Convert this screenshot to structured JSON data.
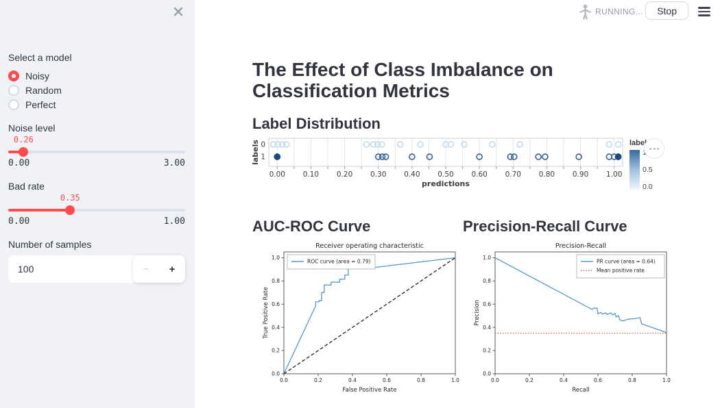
{
  "header": {
    "status_label": "RUNNING...",
    "stop_label": "Stop"
  },
  "icons": {
    "close": "close-x",
    "running_man": "running-man",
    "hamburger": "menu",
    "minus": "−",
    "plus": "+",
    "chart_menu": "ellipsis"
  },
  "sidebar": {
    "model_select": {
      "label": "Select a model",
      "options": [
        {
          "label": "Noisy",
          "selected": true
        },
        {
          "label": "Random",
          "selected": false
        },
        {
          "label": "Perfect",
          "selected": false
        }
      ]
    },
    "noise_slider": {
      "label": "Noise level",
      "value": "0.26",
      "min": "0.00",
      "max": "3.00",
      "percent": 8.67
    },
    "bad_rate_slider": {
      "label": "Bad rate",
      "value": "0.35",
      "min": "0.00",
      "max": "1.00",
      "percent": 35
    },
    "samples_input": {
      "label": "Number of samples",
      "value": "100"
    }
  },
  "main": {
    "title": "The Effect of Class Imbalance on Classification Metrics",
    "label_dist_heading": "Label Distribution",
    "roc_heading": "AUC-ROC Curve",
    "pr_heading": "Precision-Recall Curve"
  },
  "chart_data": [
    {
      "type": "scatter",
      "name": "label-distribution-strip",
      "xlabel": "predictions",
      "ylabel": "labels",
      "xlim": [
        -0.025,
        1.025
      ],
      "grid_step": 0.05,
      "x_ticks": [
        "0.00",
        "0.10",
        "0.20",
        "0.30",
        "0.40",
        "0.50",
        "0.60",
        "0.70",
        "0.80",
        "0.90",
        "1.00"
      ],
      "y_categories": [
        "0",
        "1"
      ],
      "rows": [
        {
          "label": "0",
          "color": "#c3dcef",
          "points": [
            -0.012,
            0.002,
            0.015,
            0.027,
            0.265,
            0.285,
            0.298,
            0.31,
            0.365,
            0.425,
            0.5,
            0.515,
            0.555,
            0.638,
            0.72,
            0.985,
            1.012
          ],
          "filled": []
        },
        {
          "label": "1",
          "color": "#39689f",
          "points": [
            0.0,
            0.3,
            0.312,
            0.322,
            0.4,
            0.452,
            0.6,
            0.692,
            0.703,
            0.775,
            0.795,
            0.895,
            0.985,
            1.0,
            1.012
          ],
          "filled": [
            0.0,
            1.012
          ]
        }
      ],
      "filled_color": "#1b4a86",
      "legend": {
        "title": "labels",
        "ticks": [
          "1.0",
          "0.5",
          "0.0"
        ],
        "gradient": [
          "#3a699f",
          "#9ec2e0",
          "#f0f6fc"
        ]
      }
    },
    {
      "type": "line",
      "name": "roc-curve",
      "title": "Receiver operating characteristic",
      "xlabel": "False Positive Rate",
      "ylabel": "True Positive Rate",
      "xlim": [
        0,
        1
      ],
      "ylim": [
        0,
        1.05
      ],
      "x_ticks": [
        "0.0",
        "0.2",
        "0.4",
        "0.6",
        "0.8",
        "1.0"
      ],
      "y_ticks": [
        "0.0",
        "0.2",
        "0.4",
        "0.6",
        "0.8",
        "1.0"
      ],
      "legend_pos": "upper-left",
      "series": [
        {
          "name": "ROC curve (area = 0.79)",
          "color": "#5497d5",
          "dash": "solid",
          "in_legend": true,
          "points": [
            [
              0,
              0
            ],
            [
              0.185,
              0.585
            ],
            [
              0.185,
              0.62
            ],
            [
              0.205,
              0.62
            ],
            [
              0.205,
              0.63
            ],
            [
              0.22,
              0.63
            ],
            [
              0.22,
              0.7
            ],
            [
              0.235,
              0.7
            ],
            [
              0.235,
              0.765
            ],
            [
              0.275,
              0.765
            ],
            [
              0.275,
              0.79
            ],
            [
              0.325,
              0.79
            ],
            [
              0.325,
              0.815
            ],
            [
              0.355,
              0.815
            ],
            [
              0.355,
              0.85
            ],
            [
              0.375,
              0.85
            ],
            [
              0.375,
              0.915
            ],
            [
              0.465,
              0.905
            ],
            [
              1,
              1
            ]
          ]
        },
        {
          "name": "chance line",
          "color": "#1f1f1f",
          "dash": "dashed",
          "in_legend": false,
          "points": [
            [
              0,
              0
            ],
            [
              1,
              1
            ]
          ]
        }
      ]
    },
    {
      "type": "line",
      "name": "precision-recall-curve",
      "title": "Precision-Recall",
      "xlabel": "Recall",
      "ylabel": "Precision",
      "xlim": [
        0,
        1
      ],
      "ylim": [
        0,
        1.05
      ],
      "x_ticks": [
        "0.0",
        "0.2",
        "0.4",
        "0.6",
        "0.8",
        "1.0"
      ],
      "y_ticks": [
        "0.0",
        "0.2",
        "0.4",
        "0.6",
        "0.8",
        "1.0"
      ],
      "legend_pos": "upper-right",
      "series": [
        {
          "name": "PR curve (area = 0.64)",
          "color": "#5497d5",
          "dash": "solid",
          "in_legend": true,
          "points": [
            [
              0,
              1
            ],
            [
              0.565,
              0.555
            ],
            [
              0.575,
              0.565
            ],
            [
              0.595,
              0.565
            ],
            [
              0.6,
              0.515
            ],
            [
              0.615,
              0.53
            ],
            [
              0.625,
              0.515
            ],
            [
              0.645,
              0.525
            ],
            [
              0.655,
              0.51
            ],
            [
              0.675,
              0.525
            ],
            [
              0.685,
              0.508
            ],
            [
              0.7,
              0.52
            ],
            [
              0.705,
              0.49
            ],
            [
              0.72,
              0.5
            ],
            [
              0.728,
              0.465
            ],
            [
              0.745,
              0.455
            ],
            [
              0.775,
              0.47
            ],
            [
              0.81,
              0.475
            ],
            [
              0.845,
              0.483
            ],
            [
              0.855,
              0.43
            ],
            [
              1,
              0.355
            ]
          ]
        },
        {
          "name": "Mean positive rate",
          "color": "#e25555",
          "dash": "dotted",
          "in_legend": true,
          "points": [
            [
              0,
              0.35
            ],
            [
              1,
              0.35
            ]
          ]
        }
      ]
    }
  ]
}
